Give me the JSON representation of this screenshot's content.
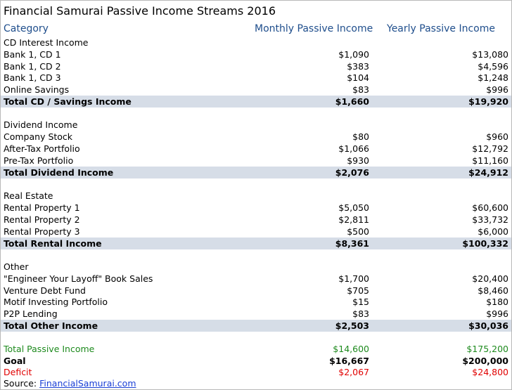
{
  "title": "Financial Samurai Passive Income Streams 2016",
  "header": {
    "category": "Category",
    "monthly": "Monthly Passive Income",
    "yearly": "Yearly Passive Income"
  },
  "sections": [
    {
      "name": "CD Interest Income",
      "rows": [
        {
          "label": "Bank 1, CD 1",
          "monthly": "$1,090",
          "yearly": "$13,080"
        },
        {
          "label": "Bank 1, CD 2",
          "monthly": "$383",
          "yearly": "$4,596"
        },
        {
          "label": "Bank 1, CD 3",
          "monthly": "$104",
          "yearly": "$1,248"
        },
        {
          "label": "Online Savings",
          "monthly": "$83",
          "yearly": "$996"
        }
      ],
      "total": {
        "label": "Total CD / Savings Income",
        "monthly": "$1,660",
        "yearly": "$19,920"
      }
    },
    {
      "name": "Dividend Income",
      "rows": [
        {
          "label": "Company Stock",
          "monthly": "$80",
          "yearly": "$960"
        },
        {
          "label": "After-Tax Portfolio",
          "monthly": "$1,066",
          "yearly": "$12,792"
        },
        {
          "label": "Pre-Tax Portfolio",
          "monthly": "$930",
          "yearly": "$11,160"
        }
      ],
      "total": {
        "label": "Total Dividend Income",
        "monthly": "$2,076",
        "yearly": "$24,912"
      }
    },
    {
      "name": "Real Estate",
      "rows": [
        {
          "label": "Rental Property 1",
          "monthly": "$5,050",
          "yearly": "$60,600"
        },
        {
          "label": "Rental Property 2",
          "monthly": "$2,811",
          "yearly": "$33,732"
        },
        {
          "label": "Rental Property 3",
          "monthly": "$500",
          "yearly": "$6,000"
        }
      ],
      "total": {
        "label": "Total Rental Income",
        "monthly": "$8,361",
        "yearly": "$100,332"
      }
    },
    {
      "name": "Other",
      "rows": [
        {
          "label": "\"Engineer Your Layoff\" Book Sales",
          "monthly": "$1,700",
          "yearly": "$20,400"
        },
        {
          "label": "Venture Debt Fund",
          "monthly": "$705",
          "yearly": "$8,460"
        },
        {
          "label": "Motif Investing Portfolio",
          "monthly": "$15",
          "yearly": "$180"
        },
        {
          "label": "P2P Lending",
          "monthly": "$83",
          "yearly": "$996"
        }
      ],
      "total": {
        "label": "Total Other Income",
        "monthly": "$2,503",
        "yearly": "$30,036"
      }
    }
  ],
  "summary": {
    "passive": {
      "label": "Total Passive Income",
      "monthly": "$14,600",
      "yearly": "$175,200"
    },
    "goal": {
      "label": "Goal",
      "monthly": "$16,667",
      "yearly": "$200,000"
    },
    "deficit": {
      "label": "Deficit",
      "monthly": "$2,067",
      "yearly": "$24,800"
    }
  },
  "source": {
    "prefix": "Source: ",
    "link_text": "FinancialSamurai.com"
  },
  "colors": {
    "header_text": "#1f4e8c",
    "total_row_bg": "#d6dde7",
    "passive_green": "#1d8a1d",
    "deficit_red": "#e10000",
    "link_blue": "#1a3fd6"
  }
}
